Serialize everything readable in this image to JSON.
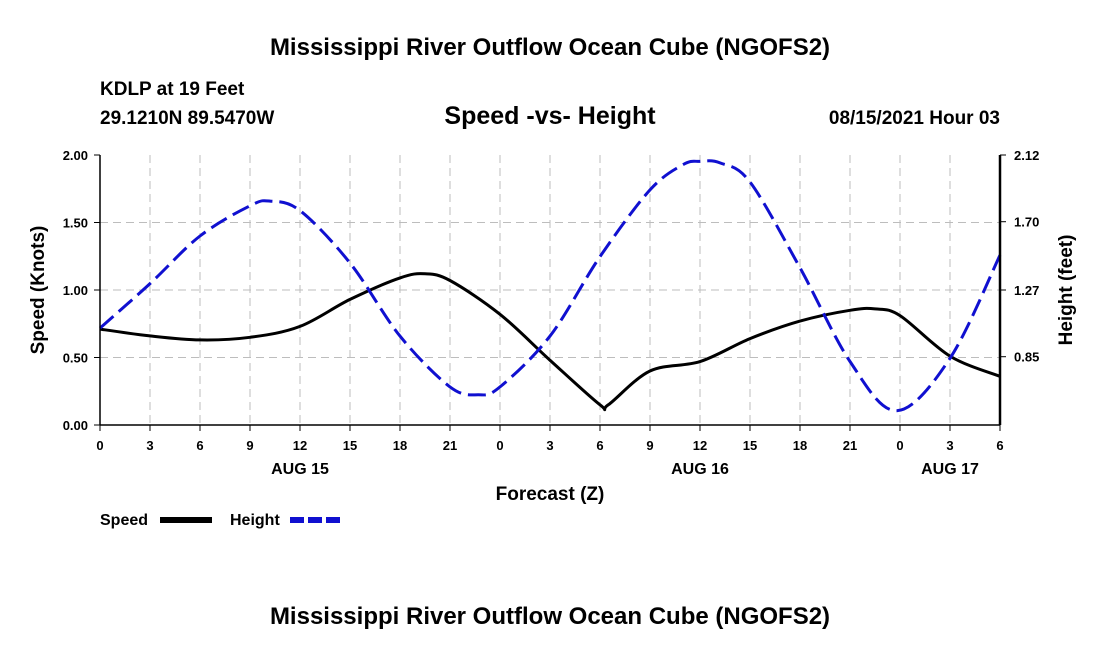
{
  "header": {
    "title_top": "Mississippi River Outflow Ocean Cube (NGOFS2)",
    "station": "KDLP at 19 Feet",
    "coords": "29.1210N  89.5470W",
    "chart_title": "Speed -vs- Height",
    "datetime": "08/15/2021 Hour 03",
    "title_bottom": "Mississippi River Outflow Ocean Cube (NGOFS2)"
  },
  "legend": {
    "speed_label": "Speed",
    "height_label": "Height"
  },
  "colors": {
    "speed": "#000000",
    "height": "#1010d0",
    "grid": "#bdbdbd"
  },
  "chart_data": {
    "type": "line",
    "title": "Speed -vs- Height",
    "xlabel": "Forecast (Z)",
    "ylabel": "Speed (Knots)",
    "y2label": "Height (feet)",
    "xlim": [
      0,
      54
    ],
    "ylim": [
      0,
      2.0
    ],
    "y2lim": [
      0.42,
      2.12
    ],
    "x_ticks": [
      0,
      3,
      6,
      9,
      12,
      15,
      18,
      21,
      24,
      27,
      30,
      33,
      36,
      39,
      42,
      45,
      48,
      51,
      54
    ],
    "x_tick_labels": [
      "0",
      "3",
      "6",
      "9",
      "12",
      "15",
      "18",
      "21",
      "0",
      "3",
      "6",
      "9",
      "12",
      "15",
      "18",
      "21",
      "0",
      "3",
      "6"
    ],
    "y_ticks": [
      0,
      0.5,
      1.0,
      1.5,
      2.0
    ],
    "y_tick_labels": [
      "0.00",
      "0.50",
      "1.00",
      "1.50",
      "2.00"
    ],
    "y2_ticks": [
      0.85,
      1.27,
      1.7,
      2.12
    ],
    "y2_tick_labels": [
      "0.85",
      "1.27",
      "1.70",
      "2.12"
    ],
    "date_labels": [
      {
        "x": 12,
        "label": "AUG 15"
      },
      {
        "x": 36,
        "label": "AUG 16"
      },
      {
        "x": 51,
        "label": "AUG 17"
      }
    ],
    "grid": true,
    "series": [
      {
        "name": "Speed",
        "axis": "left",
        "style": "solid",
        "x": [
          0,
          3,
          6,
          9,
          12,
          15,
          18,
          19.5,
          21,
          24,
          27,
          30,
          30.5,
          33,
          36,
          39,
          42,
          45,
          46.5,
          48,
          51,
          54
        ],
        "values": [
          0.71,
          0.66,
          0.63,
          0.65,
          0.73,
          0.93,
          1.09,
          1.12,
          1.07,
          0.82,
          0.48,
          0.15,
          0.15,
          0.4,
          0.47,
          0.64,
          0.77,
          0.85,
          0.86,
          0.81,
          0.51,
          0.36
        ]
      },
      {
        "name": "Height",
        "axis": "right",
        "style": "dashed",
        "x": [
          0,
          3,
          6,
          9,
          10.2,
          12,
          15,
          18,
          21,
          22.7,
          24,
          27,
          30,
          33,
          35,
          36,
          37.2,
          39,
          42,
          45,
          47.8,
          51,
          54
        ],
        "values": [
          1.03,
          1.31,
          1.61,
          1.8,
          1.83,
          1.77,
          1.44,
          0.98,
          0.66,
          0.61,
          0.66,
          0.98,
          1.48,
          1.9,
          2.06,
          2.08,
          2.07,
          1.95,
          1.41,
          0.82,
          0.51,
          0.84,
          1.49
        ]
      }
    ]
  }
}
